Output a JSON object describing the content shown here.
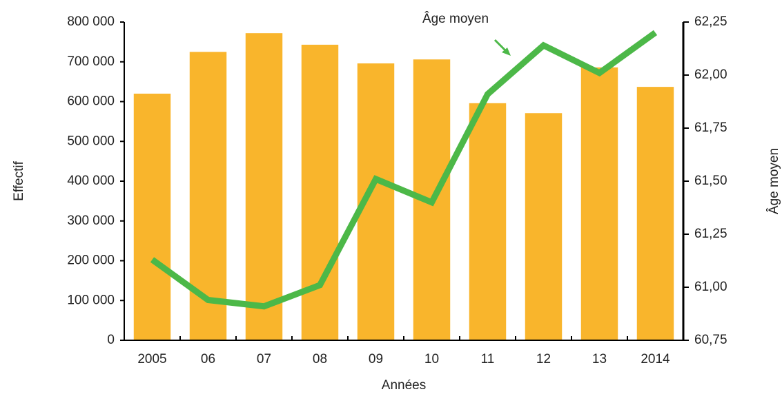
{
  "chart_data": {
    "type": "bar_line",
    "x_label": "Années",
    "y_label": "Effectif",
    "y2_label": "Âge moyen",
    "annotation": "Âge moyen",
    "categories": [
      "2005",
      "06",
      "07",
      "08",
      "09",
      "10",
      "11",
      "12",
      "13",
      "2014"
    ],
    "series": [
      {
        "name": "Effectif",
        "type": "bar",
        "color": "#f9b52c",
        "values": [
          620000,
          725000,
          772000,
          743000,
          696000,
          706000,
          596000,
          571000,
          686000,
          637000
        ]
      },
      {
        "name": "Âge moyen",
        "type": "line",
        "axis": "y2",
        "color": "#4cb848",
        "values": [
          61.13,
          60.94,
          60.91,
          61.01,
          61.51,
          61.4,
          61.91,
          62.14,
          62.01,
          62.2
        ]
      }
    ],
    "ylim": [
      0,
      800000
    ],
    "yticks": [
      0,
      {
        "value": 100000,
        "label": "100 000"
      },
      {
        "value": 200000,
        "label": "200 000"
      },
      {
        "value": 300000,
        "label": "300 000"
      },
      {
        "value": 400000,
        "label": "400 000"
      },
      {
        "value": 500000,
        "label": "500 000"
      },
      {
        "value": 600000,
        "label": "600 000"
      },
      {
        "value": 700000,
        "label": "700 000"
      },
      {
        "value": 800000,
        "label": "800 000"
      }
    ],
    "y2lim": [
      60.75,
      62.25
    ],
    "y2ticks": [
      {
        "value": 60.75,
        "label": "60,75"
      },
      {
        "value": 61.0,
        "label": "61,00"
      },
      {
        "value": 61.25,
        "label": "61,25"
      },
      {
        "value": 61.5,
        "label": "61,50"
      },
      {
        "value": 61.75,
        "label": "61,75"
      },
      {
        "value": 62.0,
        "label": "62,00"
      },
      {
        "value": 62.25,
        "label": "62,25"
      }
    ]
  }
}
